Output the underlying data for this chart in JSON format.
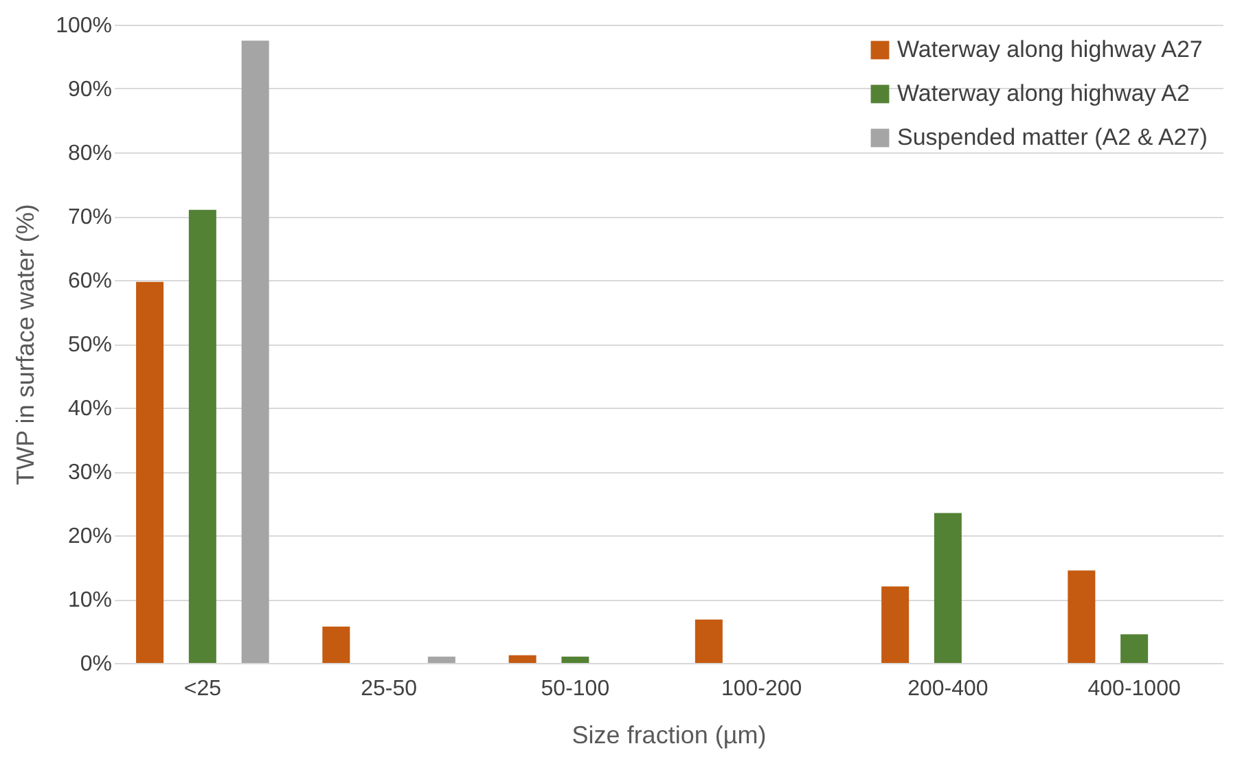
{
  "chart_data": {
    "type": "bar",
    "xlabel": "Size fraction (µm)",
    "ylabel": "TWP in surface water (%)",
    "categories": [
      "<25",
      "25-50",
      "50-100",
      "100-200",
      "200-400",
      "400-1000"
    ],
    "series": [
      {
        "name": "Waterway along highway A27",
        "color": "#c55a11",
        "values": [
          59.7,
          5.7,
          1.2,
          6.8,
          12,
          14.5
        ]
      },
      {
        "name": "Waterway along highway A2",
        "color": "#548235",
        "values": [
          71,
          0,
          1,
          0,
          23.5,
          4.5
        ]
      },
      {
        "name": "Suspended matter (A2 & A27)",
        "color": "#a5a5a5",
        "values": [
          97.5,
          1,
          0,
          0,
          0,
          0
        ]
      }
    ],
    "ylim": [
      0,
      100
    ],
    "yticks": [
      {
        "value": 0,
        "label": "0%"
      },
      {
        "value": 10,
        "label": "10%"
      },
      {
        "value": 20,
        "label": "20%"
      },
      {
        "value": 30,
        "label": "30%"
      },
      {
        "value": 40,
        "label": "40%"
      },
      {
        "value": 50,
        "label": "50%"
      },
      {
        "value": 60,
        "label": "60%"
      },
      {
        "value": 70,
        "label": "70%"
      },
      {
        "value": 80,
        "label": "80%"
      },
      {
        "value": 90,
        "label": "90%"
      },
      {
        "value": 100,
        "label": "100%"
      }
    ],
    "grid": "y",
    "legend": "top right"
  }
}
